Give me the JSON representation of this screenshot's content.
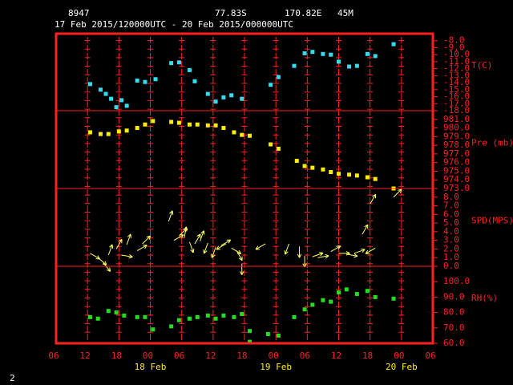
{
  "header": {
    "station": "8947",
    "latitude": "77.83S",
    "longitude": "170.82E",
    "elevation": "45M",
    "period": "17 Feb 2015/120000UTC - 20 Feb 2015/000000UTC"
  },
  "footer": "2",
  "x_axis": {
    "xlim": [
      6,
      78
    ],
    "xticks": [
      {
        "value": 6,
        "label": "06"
      },
      {
        "value": 12,
        "label": "12"
      },
      {
        "value": 18,
        "label": "18"
      },
      {
        "value": 24,
        "label": "00"
      },
      {
        "value": 30,
        "label": "06"
      },
      {
        "value": 36,
        "label": "12"
      },
      {
        "value": 42,
        "label": "18"
      },
      {
        "value": 48,
        "label": "00"
      },
      {
        "value": 54,
        "label": "06"
      },
      {
        "value": 60,
        "label": "12"
      },
      {
        "value": 66,
        "label": "18"
      },
      {
        "value": 72,
        "label": "00"
      },
      {
        "value": 78,
        "label": "06"
      }
    ],
    "date_labels": [
      {
        "value": 24,
        "label": "18 Feb"
      },
      {
        "value": 48,
        "label": "19 Feb"
      },
      {
        "value": 72,
        "label": "20 Feb"
      }
    ]
  },
  "chart_data": [
    {
      "type": "scatter",
      "label": "T(C)",
      "color": "#33ddee",
      "ylim": [
        -18,
        -7
      ],
      "yticks": [
        {
          "value": -8,
          "label": "-8.0"
        },
        {
          "value": -9,
          "label": "-9.0"
        },
        {
          "value": -10,
          "label": "-10.0"
        },
        {
          "value": -11,
          "label": "-11.0"
        },
        {
          "value": -12,
          "label": "-12.0"
        },
        {
          "value": -13,
          "label": "-13.0"
        },
        {
          "value": -14,
          "label": "-14.0"
        },
        {
          "value": -15,
          "label": "-15.0"
        },
        {
          "value": -16,
          "label": "-16.0"
        },
        {
          "value": -17,
          "label": "-17.0"
        },
        {
          "value": -18,
          "label": "-18.0"
        }
      ],
      "x": [
        12.5,
        14.5,
        15.5,
        16.5,
        17.5,
        18.5,
        19.5,
        21.5,
        23,
        25,
        28,
        29.5,
        31.5,
        32.5,
        35,
        36.5,
        38,
        39.5,
        41.5,
        47,
        48.5,
        51.5,
        53.5,
        55,
        57,
        58.5,
        60,
        62,
        63.5,
        65.5,
        67,
        70.5
      ],
      "values": [
        -14.2,
        -15.0,
        -15.6,
        -16.3,
        -17.5,
        -16.5,
        -17.3,
        -13.7,
        -13.9,
        -13.5,
        -11.2,
        -11.1,
        -12.2,
        -13.8,
        -15.6,
        -16.7,
        -16.1,
        -15.8,
        -16.3,
        -14.3,
        -13.2,
        -11.6,
        -9.8,
        -9.6,
        -9.9,
        -10.0,
        -11.0,
        -11.7,
        -11.6,
        -9.9,
        -10.2,
        -8.5
      ]
    },
    {
      "type": "scatter",
      "label": "Pre (mb)",
      "color": "#ffee00",
      "ylim": [
        973,
        982
      ],
      "yticks": [
        {
          "value": 973,
          "label": "973.0"
        },
        {
          "value": 974,
          "label": "974.0"
        },
        {
          "value": 975,
          "label": "975.0"
        },
        {
          "value": 976,
          "label": "976.0"
        },
        {
          "value": 977,
          "label": "977.0"
        },
        {
          "value": 978,
          "label": "978.0"
        },
        {
          "value": 979,
          "label": "979.0"
        },
        {
          "value": 980,
          "label": "980.0"
        },
        {
          "value": 981,
          "label": "981.0"
        }
      ],
      "x": [
        12.5,
        14.5,
        16,
        18,
        19.5,
        21.5,
        23,
        24.5,
        28,
        29.5,
        31.5,
        33,
        35,
        36.5,
        38,
        40,
        41.5,
        43,
        47,
        48.5,
        52,
        53.5,
        55,
        57,
        58.5,
        60,
        62,
        63.5,
        65.5,
        67,
        70.5
      ],
      "values": [
        979.5,
        979.3,
        979.3,
        979.6,
        979.7,
        980.0,
        980.4,
        980.8,
        980.7,
        980.6,
        980.4,
        980.4,
        980.3,
        980.3,
        980.0,
        979.5,
        979.2,
        979.1,
        978.1,
        977.6,
        976.2,
        975.6,
        975.4,
        975.2,
        974.9,
        974.7,
        974.6,
        974.5,
        974.3,
        974.1,
        973.0
      ]
    },
    {
      "type": "wind",
      "label": "SPD(MPS)",
      "color": "#ffff66",
      "ylim": [
        0,
        9
      ],
      "yticks": [
        {
          "value": 0,
          "label": "0.0"
        },
        {
          "value": 1,
          "label": "1.0"
        },
        {
          "value": 2,
          "label": "2.0"
        },
        {
          "value": 3,
          "label": "3.0"
        },
        {
          "value": 4,
          "label": "4.0"
        },
        {
          "value": 5,
          "label": "5.0"
        },
        {
          "value": 6,
          "label": "6.0"
        },
        {
          "value": 7,
          "label": "7.0"
        },
        {
          "value": 8,
          "label": "8.0"
        }
      ],
      "x": [
        12.5,
        14,
        15,
        16,
        17.5,
        18.5,
        19.5,
        21.5,
        22.5,
        27.5,
        28.5,
        29.5,
        30.5,
        31.5,
        32.5,
        33.5,
        35,
        36.5,
        37.5,
        38.5,
        39.5,
        40.5,
        41.5,
        46,
        50.5,
        52.5,
        53.5,
        55,
        56,
        58.5,
        60,
        61.5,
        63,
        64.5,
        66,
        67,
        70.5
      ],
      "values": [
        1.5,
        1.0,
        0.4,
        1.3,
        2.0,
        1.3,
        2.5,
        1.8,
        2.6,
        5.2,
        3.0,
        3.5,
        3.3,
        2.8,
        2.6,
        2.9,
        2.7,
        2.2,
        2.4,
        2.6,
        2.1,
        1.8,
        0.3,
        2.6,
        2.6,
        2.3,
        1.2,
        1.1,
        1.0,
        1.7,
        1.5,
        1.4,
        1.5,
        3.7,
        7.2,
        2.1,
        8.0
      ],
      "directions": [
        120,
        130,
        140,
        20,
        30,
        100,
        20,
        60,
        45,
        20,
        60,
        45,
        10,
        160,
        30,
        20,
        200,
        200,
        60,
        240,
        120,
        150,
        180,
        240,
        200,
        180,
        180,
        70,
        80,
        60,
        90,
        100,
        70,
        30,
        30,
        240,
        45
      ]
    },
    {
      "type": "scatter",
      "label": "RH(%)",
      "color": "#22dd22",
      "ylim": [
        60,
        110
      ],
      "yticks": [
        {
          "value": 60,
          "label": "60.0"
        },
        {
          "value": 70,
          "label": "70.0"
        },
        {
          "value": 80,
          "label": "80.0"
        },
        {
          "value": 90,
          "label": "90.0"
        },
        {
          "value": 100,
          "label": "100.0"
        }
      ],
      "x": [
        12.5,
        14,
        16,
        17.5,
        19,
        21.5,
        23,
        24.5,
        28,
        29.5,
        31.5,
        33,
        35,
        36.5,
        38,
        40,
        41.5,
        43,
        43,
        46.5,
        48.5,
        51.5,
        53.5,
        55,
        57,
        58.5,
        60,
        61.5,
        63.5,
        65.5,
        67,
        70.5
      ],
      "values": [
        77,
        76,
        81,
        80,
        78,
        77,
        77,
        69,
        71,
        75,
        76,
        77,
        78,
        76,
        78,
        77,
        79,
        68,
        61,
        66,
        65,
        77,
        82,
        85,
        88,
        87,
        93,
        95,
        92,
        94,
        90,
        89
      ]
    }
  ]
}
